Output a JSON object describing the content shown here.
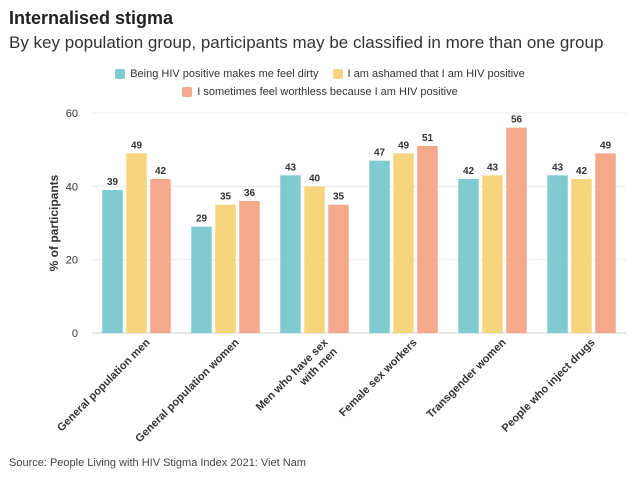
{
  "title": "Internalised stigma",
  "subtitle": "By key population group, participants may be classified in more than one group",
  "source": "Source: People Living with HIV Stigma Index 2021: Viet Nam",
  "chart_data": {
    "type": "bar",
    "title": "Internalised stigma",
    "subtitle": "By key population group, participants may be classified in more than one group",
    "ylabel": "% of participants",
    "xlabel": "",
    "ylim": [
      0,
      60
    ],
    "yticks": [
      "0",
      "20",
      "40",
      "60"
    ],
    "grid": true,
    "legend_position": "top-center",
    "categories": [
      "General population men",
      "General population women",
      "Men who have sex with men",
      "Female sex workers",
      "Transgender women",
      "People who inject drugs"
    ],
    "series": [
      {
        "name": "Being HIV positive makes me feel dirty",
        "color": "#7fcbd0",
        "values": [
          39,
          29,
          43,
          47,
          42,
          43
        ]
      },
      {
        "name": "I am ashamed that I am HIV positive",
        "color": "#f6d57f",
        "values": [
          49,
          35,
          40,
          49,
          43,
          42
        ]
      },
      {
        "name": "I sometimes feel worthless because I am HIV positive",
        "color": "#f4a98c",
        "values": [
          42,
          36,
          35,
          51,
          56,
          49
        ]
      }
    ]
  }
}
